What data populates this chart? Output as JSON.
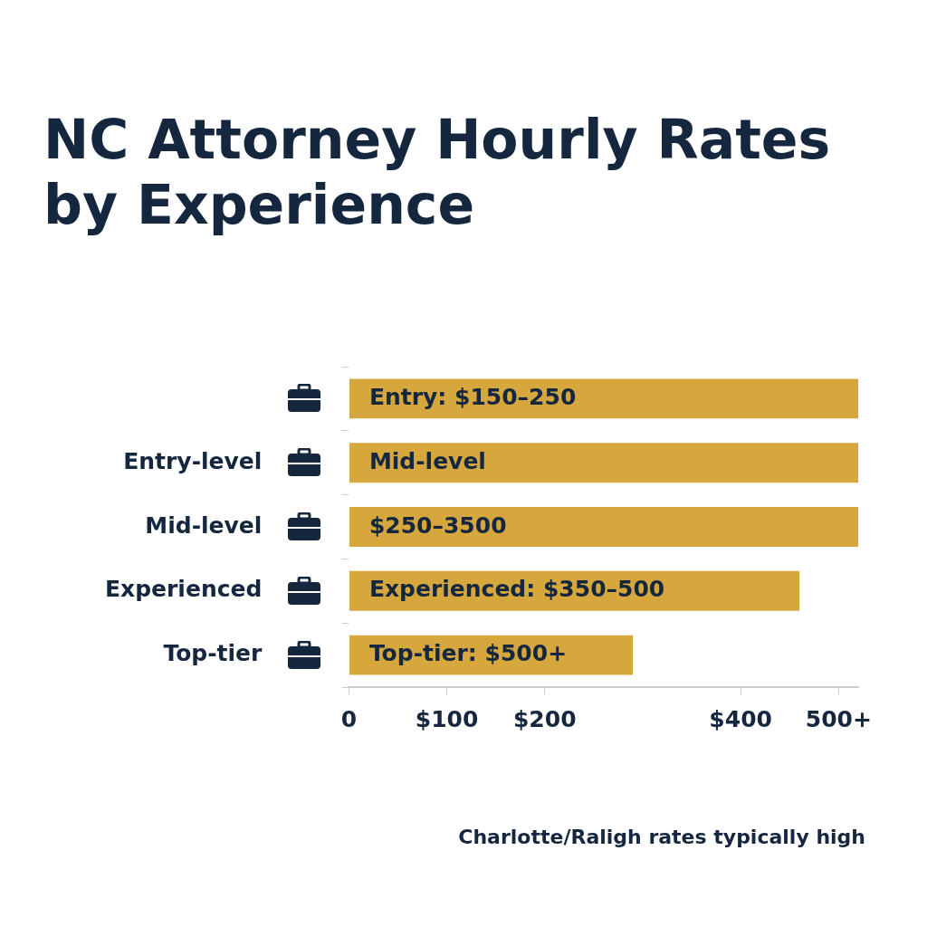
{
  "chart_data": {
    "type": "bar",
    "orientation": "horizontal",
    "title": "NC Attorney Hourly Rates by Experience",
    "categories": [
      null,
      "Entry-level",
      "Mid-level",
      "Experienced",
      "Top-tier"
    ],
    "values": [
      520,
      520,
      520,
      460,
      290
    ],
    "value_labels": [
      "Entry: $150–250",
      "Mid-level",
      "$250–3500",
      "Experienced: $350–500",
      "Top-tier: $500+"
    ],
    "color": "#d6a73c",
    "xlim": [
      0,
      520
    ],
    "xticks": [
      0,
      {
        "value": 100,
        "label": "$100"
      },
      {
        "value": 200,
        "label": "$200"
      },
      {
        "value": 400,
        "label": "$400"
      },
      {
        "value": 500,
        "label": "500+"
      }
    ],
    "grid": false,
    "annotations": [
      "Charlotte/Raligh rates typically high"
    ]
  }
}
